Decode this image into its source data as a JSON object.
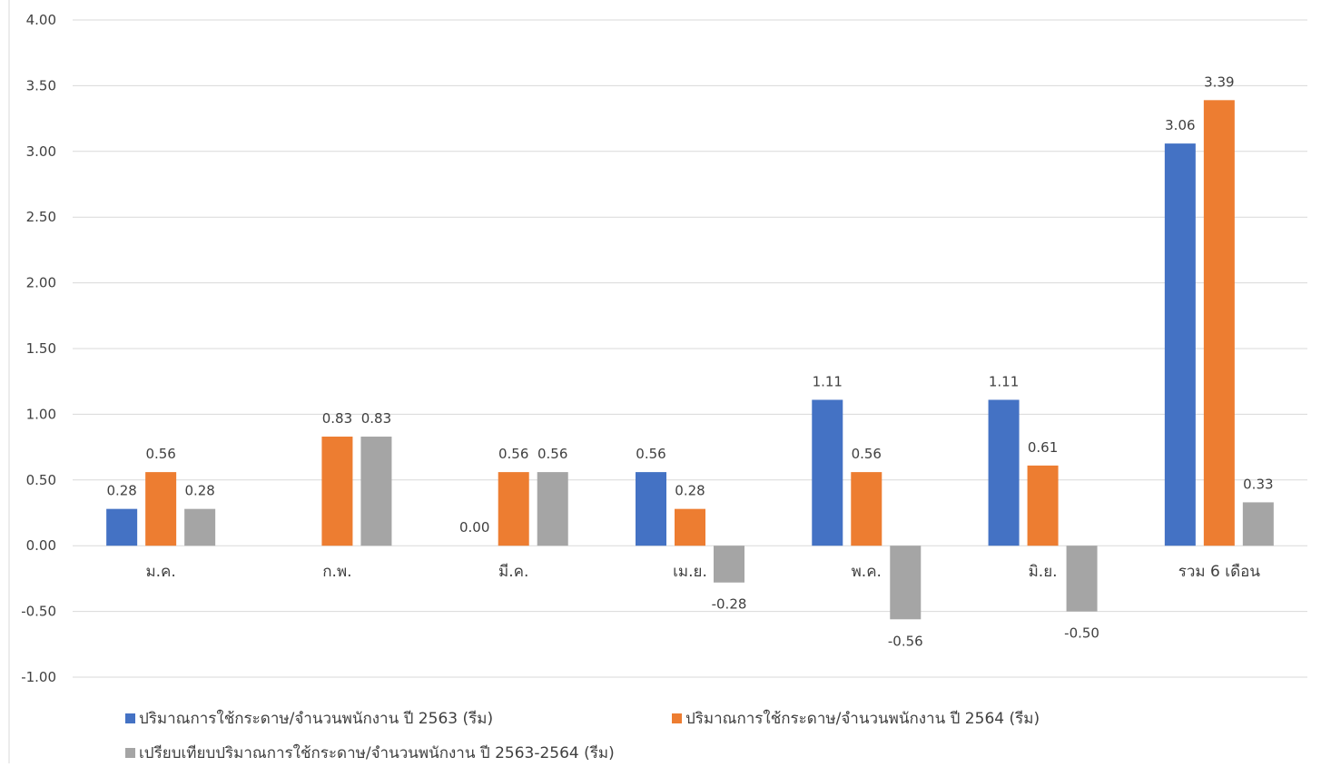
{
  "chart_data": {
    "type": "bar",
    "categories": [
      "ม.ค.",
      "ก.พ.",
      "มี.ค.",
      "เม.ย.",
      "พ.ค.",
      "มิ.ย.",
      "รวม 6 เดือน"
    ],
    "series": [
      {
        "name": "ปริมาณการใช้กระดาษ/จำนวนพนักงาน ปี 2563 (รีม)",
        "color": "#4472C4",
        "values": [
          0.28,
          0.0,
          0.0,
          0.56,
          1.11,
          1.11,
          3.06
        ]
      },
      {
        "name": "ปริมาณการใช้กระดาษ/จำนวนพนักงาน ปี 2564 (รีม)",
        "color": "#ED7D31",
        "values": [
          0.56,
          0.83,
          0.56,
          0.28,
          0.56,
          0.61,
          3.39
        ]
      },
      {
        "name": "เปรียบเทียบปริมาณการใช้กระดาษ/จำนวนพนักงาน ปี 2563-2564 (รีม)",
        "color": "#A5A5A5",
        "values": [
          0.28,
          0.83,
          0.56,
          -0.28,
          -0.56,
          -0.5,
          0.33
        ]
      }
    ],
    "data_labels": [
      [
        "0.28",
        "",
        "0.00",
        "0.56",
        "1.11",
        "1.11",
        "3.06"
      ],
      [
        "0.56",
        "0.83",
        "0.56",
        "0.28",
        "0.56",
        "0.61",
        "3.39"
      ],
      [
        "0.28",
        "0.83",
        "0.56",
        "-0.28",
        "-0.56",
        "-0.50",
        "0.33"
      ]
    ],
    "y_ticks": [
      "4.00",
      "3.50",
      "3.00",
      "2.50",
      "2.00",
      "1.50",
      "1.00",
      "0.50",
      "0.00",
      "-0.50",
      "-1.00"
    ],
    "ylim": [
      -1.0,
      4.0
    ],
    "grid": true,
    "legend_position": "bottom",
    "title": "",
    "xlabel": "",
    "ylabel": ""
  }
}
